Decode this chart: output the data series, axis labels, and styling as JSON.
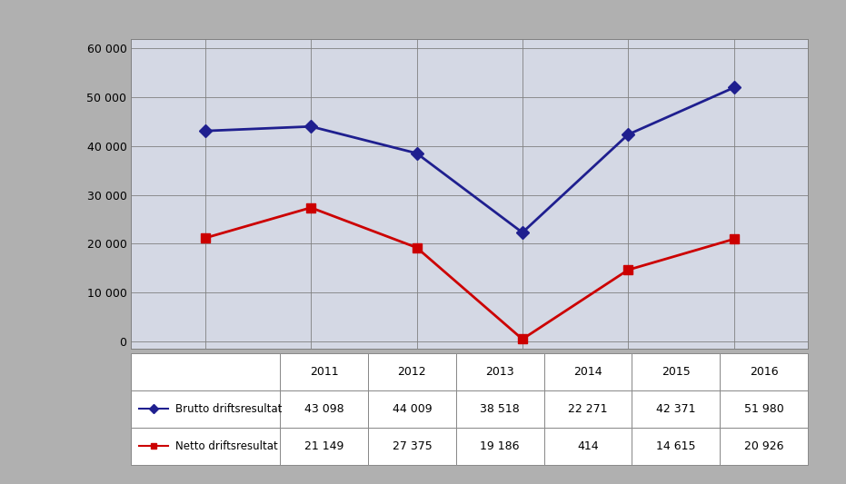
{
  "years": [
    2011,
    2012,
    2013,
    2014,
    2015,
    2016
  ],
  "brutto": [
    43098,
    44009,
    38518,
    22271,
    42371,
    51980
  ],
  "netto": [
    21149,
    27375,
    19186,
    414,
    14615,
    20926
  ],
  "brutto_color": "#1f1f8f",
  "netto_color": "#cc0000",
  "plot_bg_color": "#d4d8e4",
  "outer_bg": "#b0b0b0",
  "legend_label_brutto": "Brutto driftsresultat",
  "legend_label_netto": "Netto driftsresultat",
  "yticks": [
    0,
    10000,
    20000,
    30000,
    40000,
    50000,
    60000
  ],
  "ytick_labels": [
    "0",
    "10 000",
    "20 000",
    "30 000",
    "40 000",
    "50 000",
    "60 000"
  ],
  "table_brutto": [
    "43 098",
    "44 009",
    "38 518",
    "22 271",
    "42 371",
    "51 980"
  ],
  "table_netto": [
    "21 149",
    "27 375",
    "19 186",
    "414",
    "14 615",
    "20 926"
  ],
  "marker_size": 7,
  "line_width": 2.0
}
